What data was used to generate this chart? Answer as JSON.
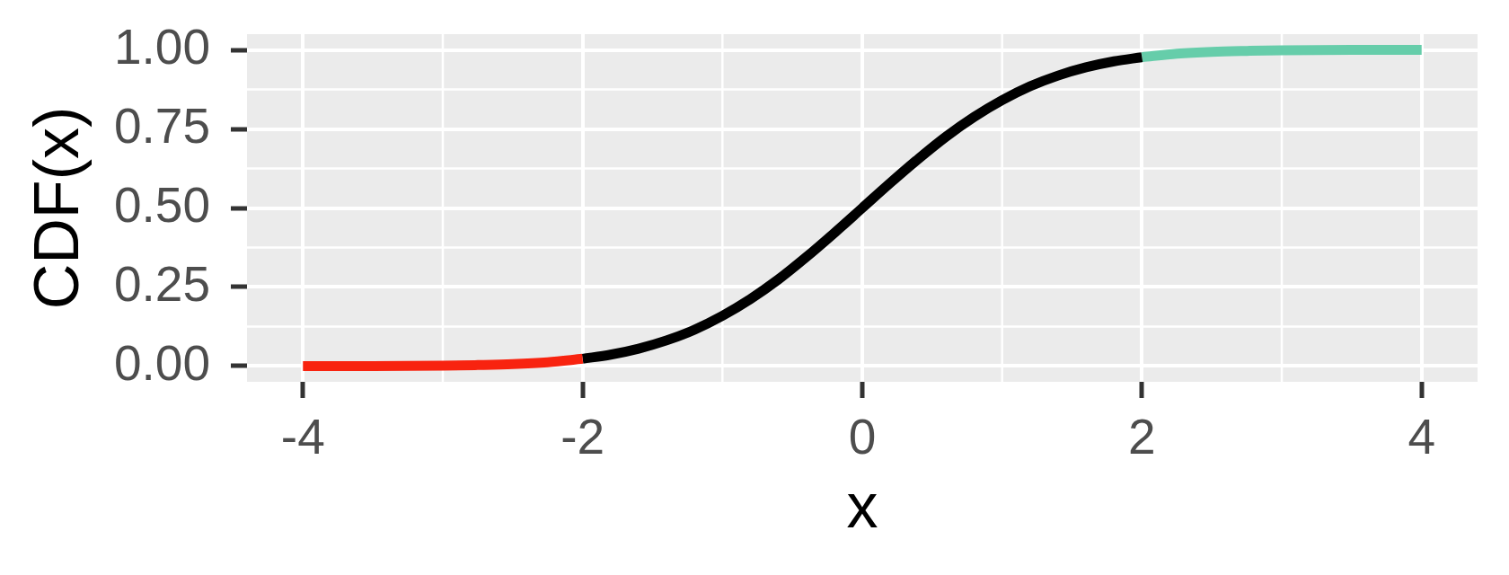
{
  "chart_data": {
    "type": "line",
    "xlabel": "x",
    "ylabel": "CDF(x)",
    "xlim": [
      -4.4,
      4.4
    ],
    "xticks": [
      -4,
      -2,
      0,
      2,
      4
    ],
    "ylim": [
      -0.05,
      1.05
    ],
    "yticks": [
      {
        "value": 0,
        "label": "0.00"
      },
      {
        "value": 0.25,
        "label": "0.25"
      },
      {
        "value": 0.5,
        "label": "0.50"
      },
      {
        "value": 0.75,
        "label": "0.75"
      },
      {
        "value": 1,
        "label": "1.00"
      }
    ],
    "grid": true,
    "series": [
      {
        "color": "#f8230f",
        "x": [
          -4,
          -3.5,
          -3,
          -2.75,
          -2.5,
          -2.25,
          -2
        ],
        "values": [
          0.0,
          0.0,
          0.001,
          0.003,
          0.006,
          0.012,
          0.023
        ]
      },
      {
        "color": "#000000",
        "x": [
          -2,
          -1.8,
          -1.6,
          -1.4,
          -1.2,
          -1,
          -0.8,
          -0.6,
          -0.4,
          -0.2,
          0,
          0.2,
          0.4,
          0.6,
          0.8,
          1,
          1.2,
          1.4,
          1.6,
          1.8,
          2
        ],
        "values": [
          0.023,
          0.036,
          0.055,
          0.081,
          0.115,
          0.159,
          0.212,
          0.274,
          0.345,
          0.421,
          0.5,
          0.579,
          0.655,
          0.726,
          0.788,
          0.841,
          0.885,
          0.919,
          0.945,
          0.964,
          0.977
        ]
      },
      {
        "color": "#66cdaa",
        "x": [
          2,
          2.25,
          2.5,
          2.75,
          3,
          3.5,
          4
        ],
        "values": [
          0.977,
          0.988,
          0.994,
          0.997,
          0.999,
          1.0,
          1.0
        ]
      }
    ]
  }
}
